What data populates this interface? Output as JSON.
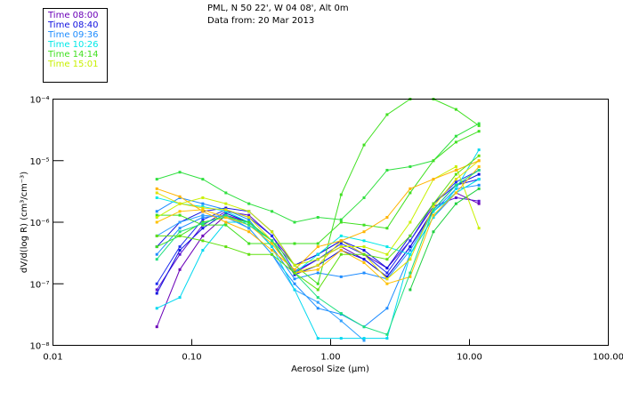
{
  "header": {
    "location": "PML, N 50 22', W 04 08', Alt 0m",
    "date": "Data from: 20 Mar 2013"
  },
  "legend": [
    {
      "label": "Time 08:00",
      "color": "#6a00b8"
    },
    {
      "label": "Time 08:40",
      "color": "#1010e0"
    },
    {
      "label": "Time 09:36",
      "color": "#1e8cff"
    },
    {
      "label": "Time 10:26",
      "color": "#00e8e8"
    },
    {
      "label": "Time 14:14",
      "color": "#40e020"
    },
    {
      "label": "Time 15:01",
      "color": "#c8f000"
    }
  ],
  "chart_data": {
    "type": "line",
    "xlabel": "Aerosol Size (µm)",
    "ylabel": "dV/d(log R) (cm³/cm⁻³)",
    "xscale": "log",
    "yscale": "log",
    "xlim": [
      0.01,
      100
    ],
    "ylim": [
      1e-08,
      0.0001
    ],
    "xticks": [
      "0.01",
      "0.10",
      "1.00",
      "10.00",
      "100.00"
    ],
    "xtick_values": [
      0.01,
      0.1,
      1,
      10,
      100
    ],
    "yticks": [
      "10⁻⁴",
      "10⁻⁵",
      "10⁻⁶",
      "10⁻⁷",
      "10⁻⁸"
    ],
    "ytick_values": [
      0.0001,
      1e-05,
      1e-06,
      1e-07,
      1e-08
    ],
    "legend_position": "top-left-outside",
    "grid": false,
    "x": [
      0.056,
      0.082,
      0.12,
      0.176,
      0.258,
      0.378,
      0.55,
      0.81,
      1.19,
      1.74,
      2.55,
      3.74,
      5.5,
      8.0,
      11.7
    ],
    "series": [
      {
        "color": "#6a00b8",
        "values": [
          2e-08,
          1.7e-07,
          6e-07,
          1.3e-06,
          1e-06,
          5e-07,
          1.5e-07,
          2.5e-07,
          4e-07,
          2.5e-07,
          1.3e-07,
          4e-07,
          1.5e-06,
          3e-06,
          2e-06
        ]
      },
      {
        "color": "#5a10d0",
        "values": [
          8e-08,
          3e-07,
          9e-07,
          1.5e-06,
          1.3e-06,
          6e-07,
          2e-07,
          3e-07,
          5e-07,
          3e-07,
          1.8e-07,
          5e-07,
          1.8e-06,
          2.5e-06,
          2.2e-06
        ]
      },
      {
        "color": "#1010e0",
        "values": [
          4e-07,
          1e-06,
          1.5e-06,
          1.7e-06,
          1.5e-06,
          7e-07,
          2e-07,
          3e-07,
          5e-07,
          3.5e-07,
          1.8e-07,
          6e-07,
          2e-06,
          4e-06,
          6e-06
        ]
      },
      {
        "color": "#2030f0",
        "values": [
          1e-07,
          4e-07,
          1.1e-06,
          1.6e-06,
          1.2e-06,
          6e-07,
          1.6e-07,
          2.5e-07,
          4.5e-07,
          3e-07,
          1.5e-07,
          5e-07,
          2e-06,
          4.5e-06,
          7e-06
        ]
      },
      {
        "color": "#1010e0",
        "values": [
          7e-08,
          3.5e-07,
          8e-07,
          1.4e-06,
          1e-06,
          5e-07,
          1.4e-07,
          2e-07,
          3.5e-07,
          2.5e-07,
          1.3e-07,
          4e-07,
          1.6e-06,
          4e-06,
          5e-06
        ]
      },
      {
        "color": "#1e8cff",
        "values": [
          1.5e-06,
          2.5e-06,
          2e-06,
          1.6e-06,
          1.1e-06,
          4e-07,
          1.2e-07,
          1.5e-07,
          1.3e-07,
          1.5e-07,
          1.2e-07,
          3.5e-07,
          1.5e-06,
          3.5e-06,
          4e-06
        ]
      },
      {
        "color": "#1e8cff",
        "values": [
          3e-07,
          8e-07,
          1.2e-06,
          1.3e-06,
          8e-07,
          3e-07,
          1e-07,
          4e-08,
          3.2e-08,
          2e-08,
          4e-08,
          3e-07,
          1.2e-06,
          3e-06,
          5e-06
        ]
      },
      {
        "color": "#30a0ff",
        "values": [
          6e-07,
          1e-06,
          1.3e-06,
          1.2e-06,
          8e-07,
          3e-07,
          8e-08,
          5e-08,
          2.5e-08,
          1.2e-08,
          null,
          null,
          null,
          null,
          null
        ]
      },
      {
        "color": "#00d8f0",
        "values": [
          4e-08,
          6e-08,
          3.5e-07,
          1e-06,
          1e-06,
          4e-07,
          8e-08,
          1.3e-08,
          1.3e-08,
          1.3e-08,
          1.3e-08,
          3e-07,
          1.2e-06,
          3.5e-06,
          1.5e-05
        ]
      },
      {
        "color": "#00e8e8",
        "values": [
          2.5e-06,
          2e-06,
          1.8e-06,
          1.5e-06,
          1e-06,
          5e-07,
          1.5e-07,
          3e-07,
          6e-07,
          5e-07,
          4e-07,
          3e-07,
          1.5e-06,
          3e-06,
          5e-06
        ]
      },
      {
        "color": "#40e020",
        "values": [
          4e-07,
          6e-07,
          1e-06,
          1.2e-06,
          1e-06,
          5e-07,
          2e-07,
          1e-07,
          2.8e-06,
          1.8e-05,
          5.6e-05,
          0.0001,
          0.0001,
          6.8e-05,
          3.7e-05
        ]
      },
      {
        "color": "#30e040",
        "values": [
          5e-06,
          6.5e-06,
          5e-06,
          3e-06,
          2e-06,
          1.5e-06,
          1e-06,
          1.2e-06,
          1.1e-06,
          2.5e-06,
          7e-06,
          8e-06,
          1e-05,
          2.5e-05,
          4e-05
        ]
      },
      {
        "color": "#40e020",
        "values": [
          1.3e-06,
          1.3e-06,
          9e-07,
          9e-07,
          4.5e-07,
          4.5e-07,
          4.5e-07,
          4.5e-07,
          1e-06,
          9e-07,
          8e-07,
          3e-06,
          1e-05,
          2e-05,
          3e-05
        ]
      },
      {
        "color": "#20d040",
        "values": [
          null,
          null,
          null,
          null,
          null,
          null,
          null,
          null,
          null,
          null,
          null,
          8e-08,
          7e-07,
          2e-06,
          3.5e-06
        ]
      },
      {
        "color": "#c8f000",
        "values": [
          1.2e-06,
          2e-06,
          2.5e-06,
          2e-06,
          1.5e-06,
          7e-07,
          2e-07,
          2.5e-07,
          4e-07,
          4e-07,
          3e-07,
          1e-06,
          5e-06,
          8e-06,
          8e-07
        ]
      },
      {
        "color": "#e0e000",
        "values": [
          3e-06,
          2e-06,
          1.7e-06,
          1.6e-06,
          1.2e-06,
          5e-07,
          1.5e-07,
          2e-07,
          5e-07,
          3e-07,
          1.2e-07,
          2.5e-07,
          1.8e-06,
          5e-06,
          1e-05
        ]
      },
      {
        "color": "#ffb400",
        "values": [
          3.5e-06,
          2.6e-06,
          1.5e-06,
          1e-06,
          7e-07,
          3.5e-07,
          1.7e-07,
          4e-07,
          5e-07,
          7e-07,
          1.2e-06,
          3.5e-06,
          5e-06,
          7e-06,
          1e-05
        ]
      },
      {
        "color": "#ffc000",
        "values": [
          1e-06,
          1.5e-06,
          1.6e-06,
          1.2e-06,
          9e-07,
          4.5e-07,
          1.5e-07,
          1.7e-07,
          3.5e-07,
          2.2e-07,
          1e-07,
          1.3e-07,
          1.3e-06,
          3e-06,
          8e-06
        ]
      },
      {
        "color": "#20e080",
        "values": [
          2.5e-07,
          7e-07,
          9.5e-07,
          1.3e-06,
          9e-07,
          5e-07,
          1.5e-07,
          6e-08,
          3.3e-08,
          2e-08,
          1.5e-08,
          1.5e-07,
          1.6e-06,
          4e-06,
          7e-06
        ]
      },
      {
        "color": "#60e010",
        "values": [
          6e-07,
          6e-07,
          5e-07,
          4e-07,
          3e-07,
          3e-07,
          1.5e-07,
          8e-08,
          3e-07,
          3e-07,
          2.5e-07,
          6e-07,
          2e-06,
          6e-06,
          1.2e-05
        ]
      }
    ]
  }
}
